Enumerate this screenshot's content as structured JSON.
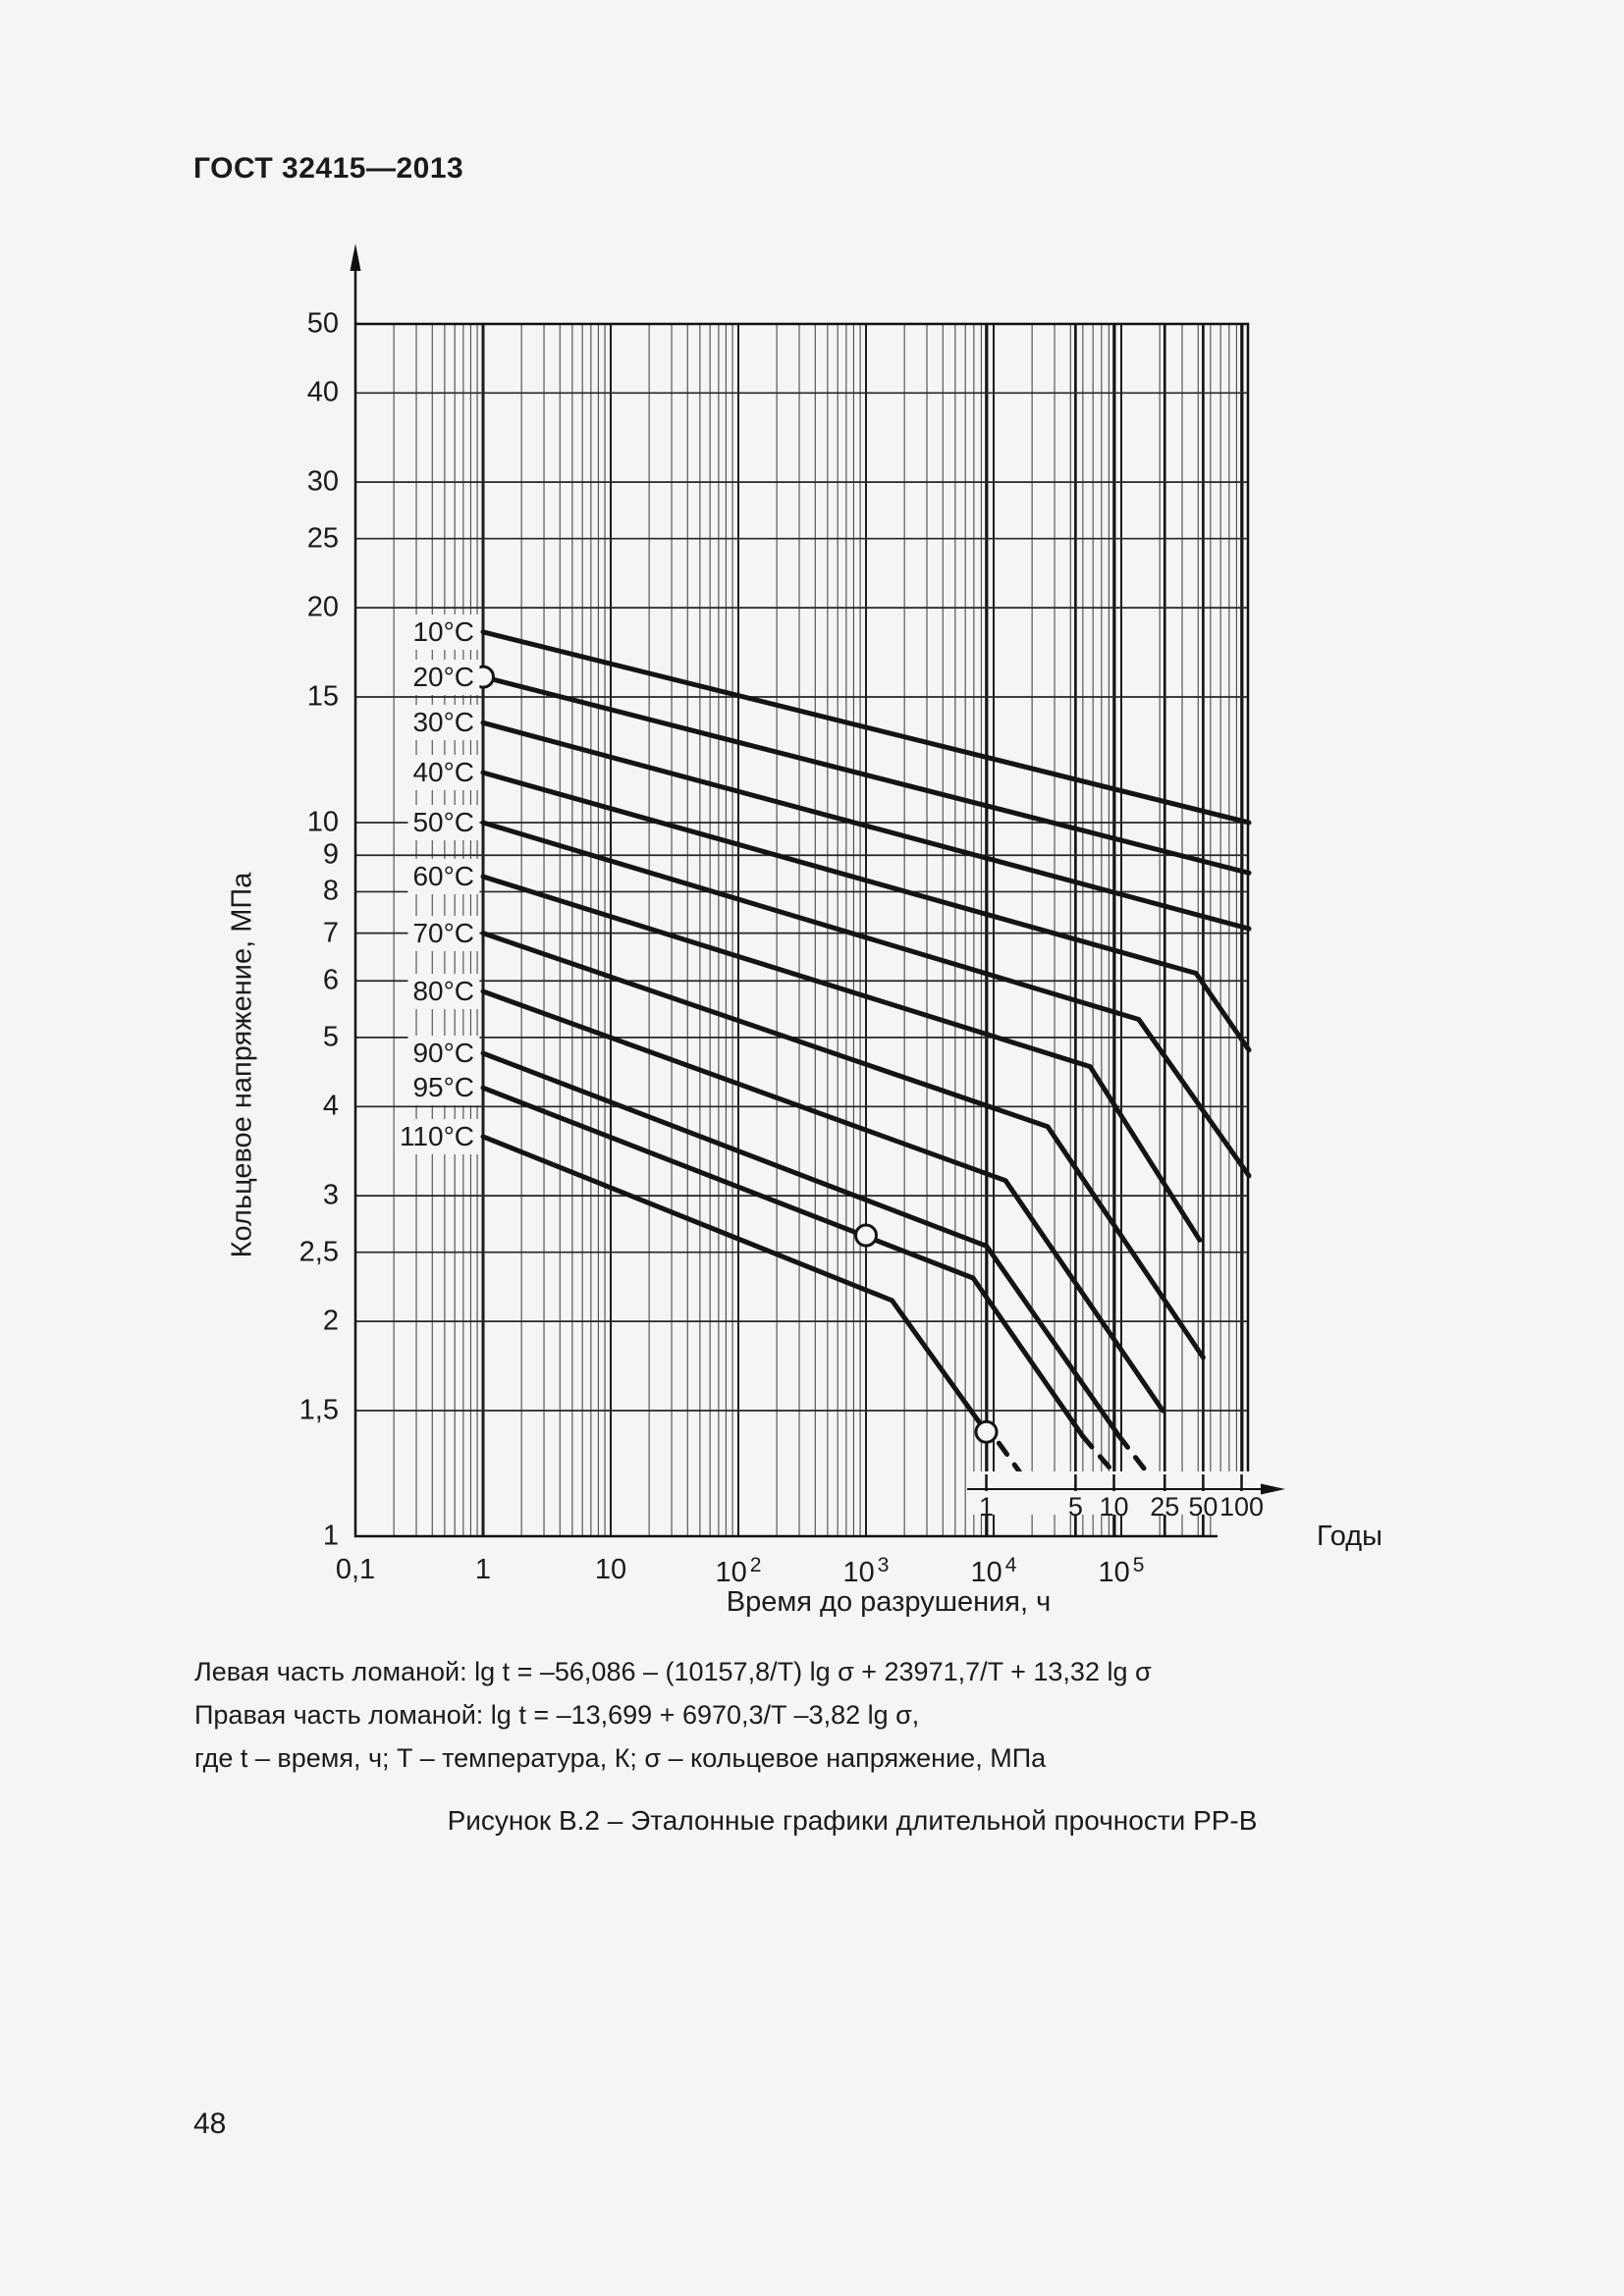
{
  "page": {
    "header": "ГОСТ 32415—2013",
    "page_number": "48",
    "background_color": "#f6f5f3",
    "line_color": "#1b1b1b"
  },
  "figure": {
    "caption": "Рисунок В.2 – Эталонные графики длительной прочности РР-В",
    "formula_left": "Левая часть ломаной: lg t = –56,086 – (10157,8/T) lg σ + 23971,7/T + 13,32 lg σ",
    "formula_right": "Правая часть ломаной: lg t = –13,699 + 6970,3/T –3,82 lg σ,",
    "formula_legend": "где t – время, ч; T – температура, К; σ – кольцевое напряжение, МПа"
  },
  "chart_data": {
    "type": "line",
    "scale": "log-log",
    "xlabel": "Время до разрушения, ч",
    "ylabel": "Кольцевое напряжение, МПа",
    "secondary_xlabel": "Годы",
    "grid": "log-log full grid with minor decades",
    "legend_position": "labels on curves (left side)",
    "x_range_hours": [
      0.1,
      1000000
    ],
    "y_range_mpa": [
      1,
      50
    ],
    "hours_per_year": 8760,
    "x_ticks": [
      {
        "v": 0.1,
        "label": "0,1"
      },
      {
        "v": 1,
        "label": "1"
      },
      {
        "v": 10,
        "label": "10"
      },
      {
        "v": 100,
        "label": "10²",
        "base": "10",
        "exp": "2"
      },
      {
        "v": 1000,
        "label": "10³",
        "base": "10",
        "exp": "3"
      },
      {
        "v": 10000,
        "label": "10⁴",
        "base": "10",
        "exp": "4"
      },
      {
        "v": 100000,
        "label": "10⁵",
        "base": "10",
        "exp": "5"
      }
    ],
    "y_ticks": [
      {
        "v": 50,
        "label": "50"
      },
      {
        "v": 40,
        "label": "40"
      },
      {
        "v": 30,
        "label": "30"
      },
      {
        "v": 25,
        "label": "25"
      },
      {
        "v": 20,
        "label": "20"
      },
      {
        "v": 15,
        "label": "15"
      },
      {
        "v": 10,
        "label": "10"
      },
      {
        "v": 9,
        "label": "9"
      },
      {
        "v": 8,
        "label": "8"
      },
      {
        "v": 7,
        "label": "7"
      },
      {
        "v": 6,
        "label": "6"
      },
      {
        "v": 5,
        "label": "5"
      },
      {
        "v": 4,
        "label": "4"
      },
      {
        "v": 3,
        "label": "3"
      },
      {
        "v": 2.5,
        "label": "2,5"
      },
      {
        "v": 2,
        "label": "2"
      },
      {
        "v": 1.5,
        "label": "1,5"
      },
      {
        "v": 1,
        "label": "1"
      }
    ],
    "years_ticks": [
      {
        "v": 1,
        "label": "1"
      },
      {
        "v": 5,
        "label": "5"
      },
      {
        "v": 10,
        "label": "10"
      },
      {
        "v": 25,
        "label": "25"
      },
      {
        "v": 50,
        "label": "50"
      },
      {
        "v": 100,
        "label": "100"
      }
    ],
    "series": [
      {
        "name": "10°C",
        "solid": [
          [
            1,
            18.5
          ],
          [
            1000000,
            10.0
          ]
        ]
      },
      {
        "name": "20°C",
        "solid": [
          [
            1,
            16.0
          ],
          [
            1000000,
            8.5
          ]
        ]
      },
      {
        "name": "30°C",
        "solid": [
          [
            1,
            13.8
          ],
          [
            1000000,
            7.1
          ]
        ]
      },
      {
        "name": "40°C",
        "solid": [
          [
            1,
            11.75
          ],
          [
            385000,
            6.15
          ],
          [
            1000000,
            4.8
          ]
        ]
      },
      {
        "name": "50°C",
        "solid": [
          [
            1,
            10.0
          ],
          [
            137000,
            5.3
          ],
          [
            1000000,
            3.2
          ]
        ]
      },
      {
        "name": "60°C",
        "solid": [
          [
            1,
            8.4
          ],
          [
            57000,
            4.55
          ],
          [
            412000,
            2.6
          ]
        ]
      },
      {
        "name": "70°C",
        "solid": [
          [
            1,
            7.0
          ],
          [
            26500,
            3.75
          ],
          [
            438000,
            1.78
          ]
        ]
      },
      {
        "name": "80°C",
        "solid": [
          [
            1,
            5.8
          ],
          [
            12400,
            3.15
          ],
          [
            211000,
            1.5
          ]
        ]
      },
      {
        "name": "90°C",
        "solid": [
          [
            1,
            4.75
          ],
          [
            8800,
            2.55
          ],
          [
            96600,
            1.38
          ]
        ],
        "dashed": [
          [
            96600,
            1.38
          ],
          [
            153000,
            1.24
          ]
        ]
      },
      {
        "name": "95°C",
        "solid": [
          [
            1,
            4.25
          ],
          [
            6900,
            2.3
          ],
          [
            50000,
            1.38
          ]
        ],
        "dashed": [
          [
            50000,
            1.38
          ],
          [
            85000,
            1.235
          ]
        ]
      },
      {
        "name": "110°C",
        "solid": [
          [
            1,
            3.63
          ],
          [
            1600,
            2.14
          ],
          [
            8760,
            1.4
          ]
        ],
        "dashed": [
          [
            11000,
            1.35
          ],
          [
            16000,
            1.23
          ]
        ]
      }
    ],
    "reference_points": [
      {
        "t_hours": 1,
        "sigma_mpa": 16.0,
        "on_series": "20°C"
      },
      {
        "t_hours": 1000,
        "sigma_mpa": 2.64,
        "on_series": "95°C"
      },
      {
        "t_hours": 8760,
        "sigma_mpa": 1.4,
        "on_series": "110°C"
      }
    ]
  }
}
